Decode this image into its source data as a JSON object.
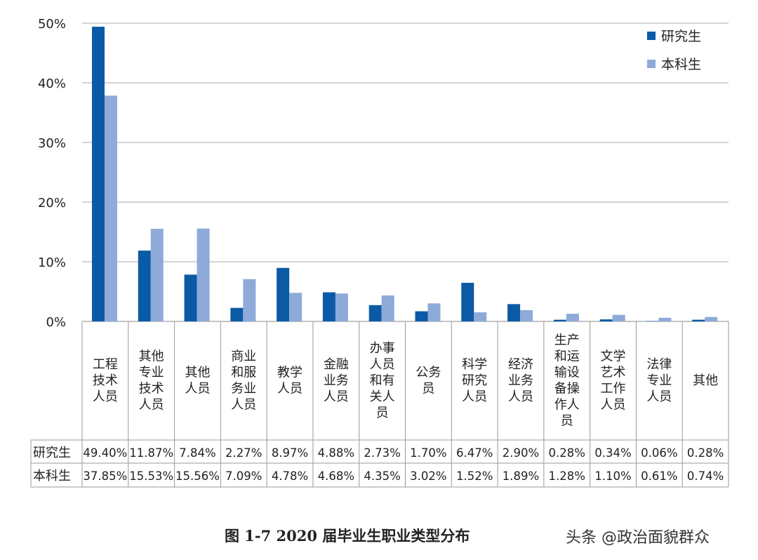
{
  "chart_data": {
    "type": "bar",
    "title": "图 1-7    2020 届毕业生职业类型分布",
    "categories": [
      "工程\n技术\n人员",
      "其他\n专业\n技术\n人员",
      "其他\n人员",
      "商业\n和服\n务业\n人员",
      "教学\n人员",
      "金融\n业务\n人员",
      "办事\n人员\n和有\n关人\n员",
      "公务\n员",
      "科学\n研究\n人员",
      "经济\n业务\n人员",
      "生产\n和运\n输设\n备操\n作人\n员",
      "文学\n艺术\n工作\n人员",
      "法律\n专业\n人员",
      "其他"
    ],
    "series": [
      {
        "name": "研究生",
        "color": "#0b5aa6",
        "values": [
          49.4,
          11.87,
          7.84,
          2.27,
          8.97,
          4.88,
          2.73,
          1.7,
          6.47,
          2.9,
          0.28,
          0.34,
          0.06,
          0.28
        ],
        "labels": [
          "49.40%",
          "11.87%",
          "7.84%",
          "2.27%",
          "8.97%",
          "4.88%",
          "2.73%",
          "1.70%",
          "6.47%",
          "2.90%",
          "0.28%",
          "0.34%",
          "0.06%",
          "0.28%"
        ]
      },
      {
        "name": "本科生",
        "color": "#8eaad9",
        "values": [
          37.85,
          15.53,
          15.56,
          7.09,
          4.78,
          4.68,
          4.35,
          3.02,
          1.52,
          1.89,
          1.28,
          1.1,
          0.61,
          0.74
        ],
        "labels": [
          "37.85%",
          "15.53%",
          "15.56%",
          "7.09%",
          "4.78%",
          "4.68%",
          "4.35%",
          "3.02%",
          "1.52%",
          "1.89%",
          "1.28%",
          "1.10%",
          "0.61%",
          "0.74%"
        ]
      }
    ],
    "yticks": [
      "0%",
      "10%",
      "20%",
      "30%",
      "40%",
      "50%"
    ],
    "ylim": [
      0,
      50
    ],
    "grid": true,
    "legend": "top-right"
  },
  "watermark": "头条 @政治面貌群众"
}
